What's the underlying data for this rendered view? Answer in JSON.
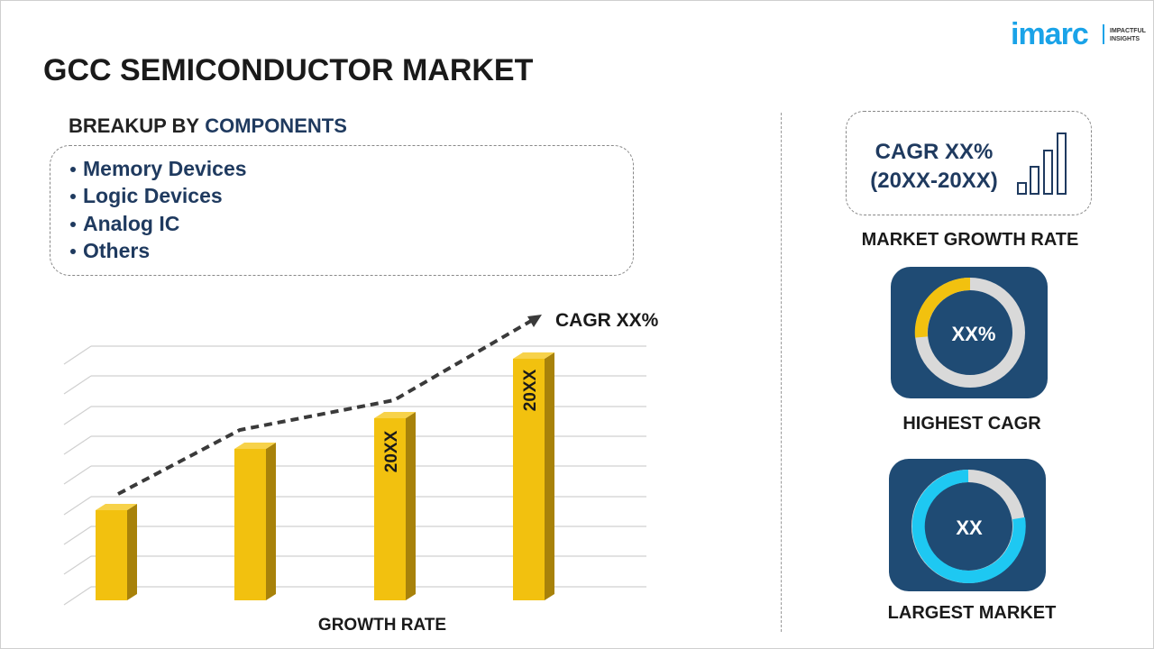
{
  "logo": {
    "brand": "imarc",
    "tagline": [
      "IMPACTFUL",
      "INSIGHTS"
    ]
  },
  "title": "GCC SEMICONDUCTOR MARKET",
  "breakup": {
    "heading": "BREAKUP BY",
    "heading_highlight": "COMPONENTS",
    "items": [
      "Memory Devices",
      "Logic Devices",
      "Analog IC",
      "Others"
    ]
  },
  "growth_chart": {
    "trend_label": "CAGR XX%",
    "bar_labels": [
      "20XX",
      "20XX"
    ],
    "x_label": "GROWTH RATE"
  },
  "market_growth": {
    "cagr": "CAGR XX%",
    "period": "(20XX-20XX)",
    "caption": "MARKET GROWTH RATE"
  },
  "highest_cagr": {
    "value": "XX%",
    "caption": "HIGHEST CAGR"
  },
  "largest_market": {
    "value": "XX",
    "caption": "LARGEST MARKET"
  }
}
